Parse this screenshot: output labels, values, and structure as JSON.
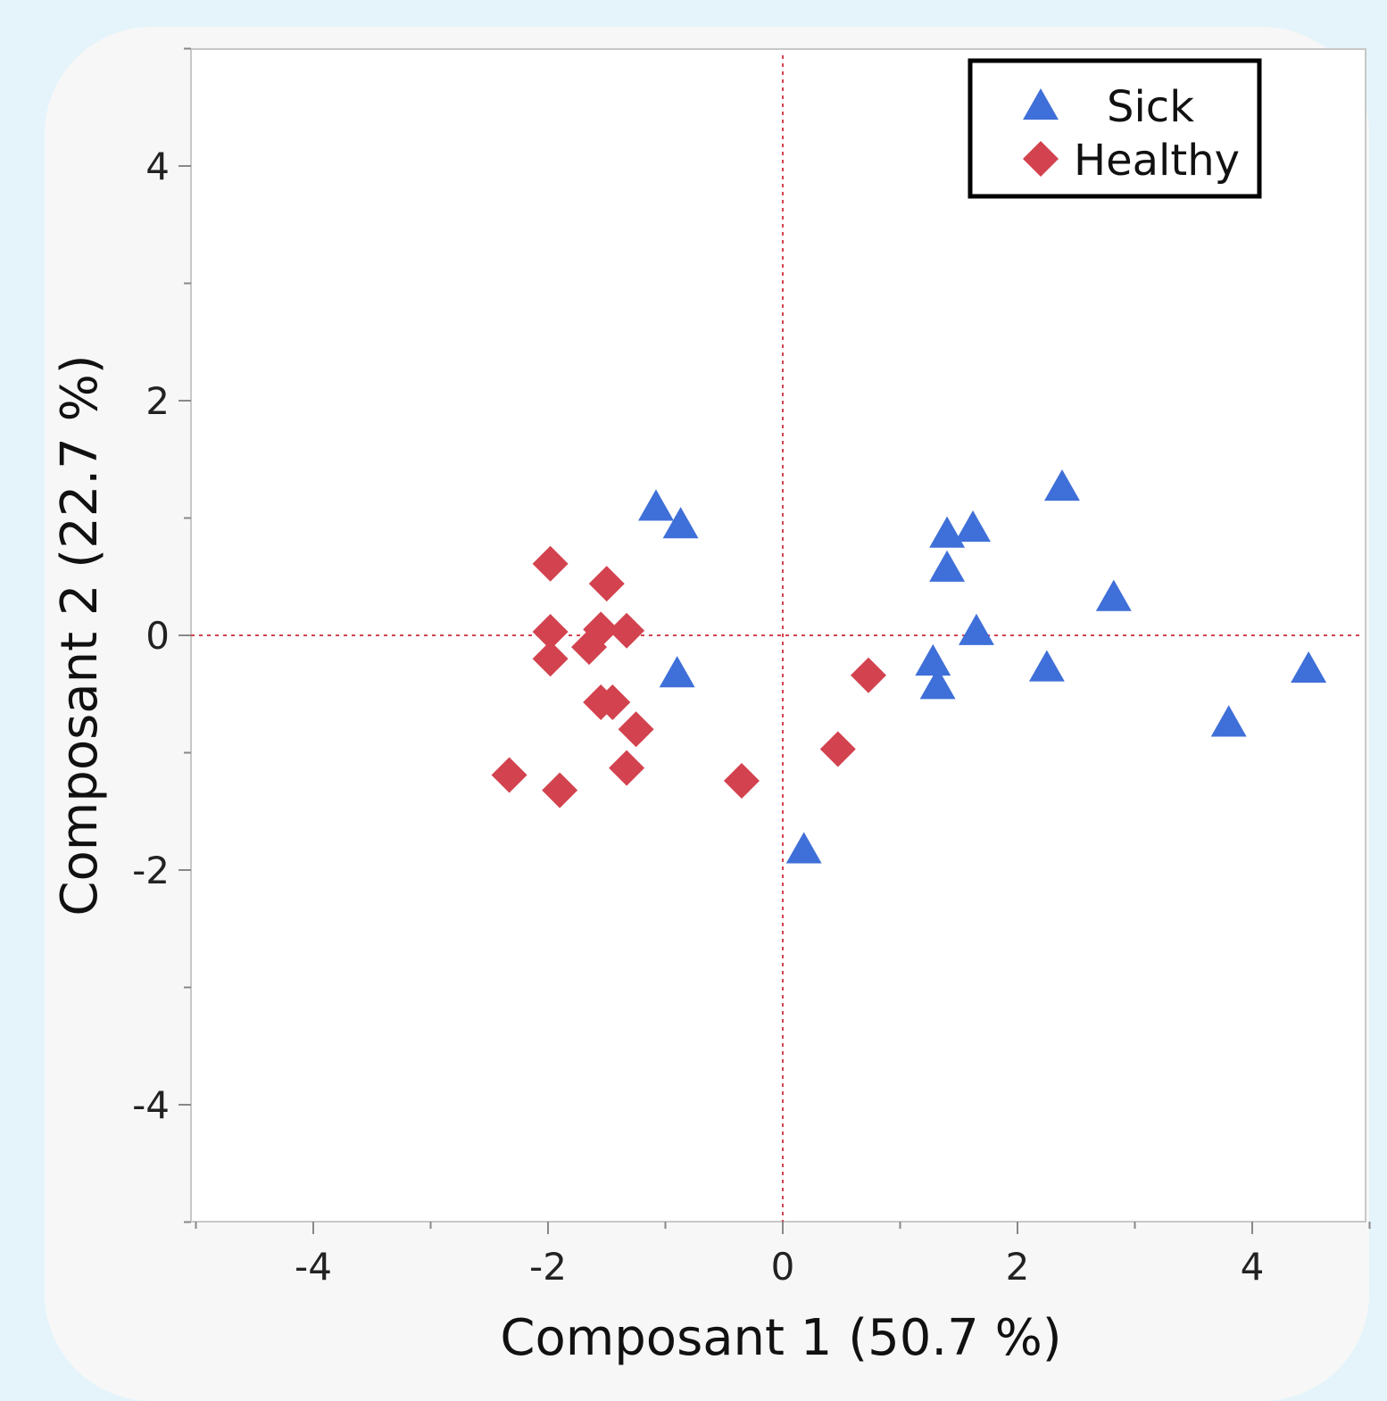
{
  "colors": {
    "sick": "#3f6fd8",
    "healthy": "#d2434f",
    "refline": "#d2434f",
    "background": "#e4f4fa"
  },
  "chart_data": {
    "type": "scatter",
    "title": "",
    "xlabel": "Composant 1  (50.7 %)",
    "ylabel": "Composant 2  (22.7 %)",
    "xlim": [
      -5,
      5
    ],
    "ylim": [
      -5,
      5
    ],
    "xticks": [
      -4,
      -2,
      0,
      2,
      4
    ],
    "yticks": [
      -4,
      -2,
      0,
      2,
      4
    ],
    "reference_lines": {
      "x": 0,
      "y": 0,
      "style": "dotted"
    },
    "grid": false,
    "legend": {
      "placement": "top-right"
    },
    "series": [
      {
        "name": "Sick",
        "marker": "triangle",
        "points": [
          [
            -1.08,
            1.1
          ],
          [
            -0.87,
            0.95
          ],
          [
            -0.9,
            -0.32
          ],
          [
            0.18,
            -1.82
          ],
          [
            1.4,
            0.87
          ],
          [
            1.62,
            0.92
          ],
          [
            1.4,
            0.58
          ],
          [
            1.65,
            0.04
          ],
          [
            1.28,
            -0.22
          ],
          [
            1.32,
            -0.42
          ],
          [
            2.38,
            1.27
          ],
          [
            2.25,
            -0.27
          ],
          [
            2.82,
            0.33
          ],
          [
            3.8,
            -0.74
          ],
          [
            4.48,
            -0.28
          ]
        ]
      },
      {
        "name": "Healthy",
        "marker": "diamond",
        "points": [
          [
            -1.98,
            0.61
          ],
          [
            -1.5,
            0.44
          ],
          [
            -1.98,
            0.03
          ],
          [
            -1.55,
            0.05
          ],
          [
            -1.33,
            0.04
          ],
          [
            -1.65,
            -0.1
          ],
          [
            -1.98,
            -0.2
          ],
          [
            -1.55,
            -0.57
          ],
          [
            -1.45,
            -0.57
          ],
          [
            -1.25,
            -0.8
          ],
          [
            -1.33,
            -1.13
          ],
          [
            -2.33,
            -1.19
          ],
          [
            -1.9,
            -1.32
          ],
          [
            -0.35,
            -1.24
          ],
          [
            0.47,
            -0.97
          ],
          [
            0.73,
            -0.34
          ]
        ]
      }
    ]
  }
}
